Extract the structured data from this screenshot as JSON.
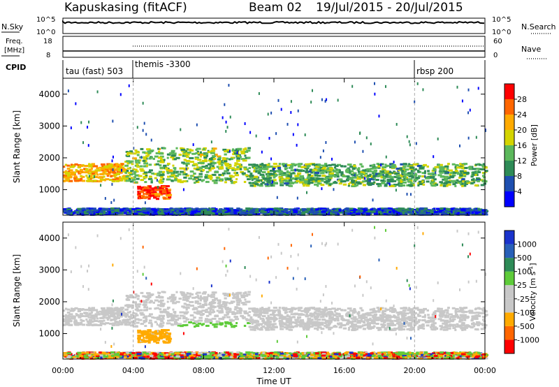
{
  "header": {
    "station": "Kapuskasing (fitACF)",
    "beam": "Beam 02",
    "date_range": "19/Jul/2015 - 20/Jul/2015"
  },
  "noise_panel": {
    "left_label": "N.Sky",
    "right_label": "N.Search",
    "left_ticks": [
      "10^5",
      "10^0"
    ],
    "right_ticks": [
      "10^5",
      "10^0"
    ]
  },
  "freq_panel": {
    "left_label_line1": "Freq.",
    "left_label_line2": "[MHz]",
    "right_label": "Nave",
    "left_ticks": [
      "18",
      "8"
    ],
    "right_ticks": [
      "60",
      "0"
    ]
  },
  "cpid_panel": {
    "label": "CPID",
    "segments": [
      {
        "name": "tau (fast) 503",
        "start_hour": 0
      },
      {
        "name": "themis -3300",
        "start_hour": 4
      },
      {
        "name": "rbsp 200",
        "start_hour": 20
      }
    ]
  },
  "colors": {
    "power_scale": [
      "#0000ff",
      "#1e4fb0",
      "#2e8b57",
      "#5cb85c",
      "#d4d400",
      "#ffaa00",
      "#ff6600",
      "#ff0000"
    ],
    "velocity_scale": [
      "#1a33cc",
      "#2860b8",
      "#2e8b57",
      "#5ecb3a",
      "#c8c8c8",
      "#c8c8c8",
      "#ffaa00",
      "#ff6600",
      "#ff0000"
    ]
  },
  "chart_data": [
    {
      "type": "heatmap",
      "title": "Power",
      "xlabel": "",
      "ylabel": "Slant Range [km]",
      "xlim": [
        0,
        24
      ],
      "ylim": [
        200,
        4500
      ],
      "yticks": [
        1000,
        2000,
        3000,
        4000
      ],
      "x_tick_hours": [
        0,
        4,
        8,
        12,
        16,
        20,
        24
      ],
      "x_tick_labels": [],
      "colorbar": {
        "label": "Power [dB]",
        "tick_labels": [
          "4",
          "8",
          "12",
          "16",
          "20",
          "24",
          "28"
        ],
        "range": [
          0,
          30
        ]
      },
      "regions": [
        {
          "t_start": 0,
          "t_end": 3.5,
          "r_low": 1250,
          "r_high": 1800,
          "value": 20
        },
        {
          "t_start": 3.5,
          "t_end": 10.5,
          "r_low": 1200,
          "r_high": 2300,
          "value": 14
        },
        {
          "t_start": 4.2,
          "t_end": 6.0,
          "r_low": 700,
          "r_high": 1100,
          "value": 26
        },
        {
          "t_start": 10.5,
          "t_end": 24,
          "r_low": 1100,
          "r_high": 1800,
          "value": 12
        },
        {
          "t_start": 0,
          "t_end": 24,
          "r_low": 200,
          "r_high": 400,
          "value": 6
        }
      ]
    },
    {
      "type": "heatmap",
      "title": "Velocity",
      "xlabel": "Time UT",
      "ylabel": "Slant Range [km]",
      "xlim": [
        0,
        24
      ],
      "ylim": [
        200,
        4500
      ],
      "yticks": [
        1000,
        2000,
        3000,
        4000
      ],
      "x_tick_hours": [
        0,
        4,
        8,
        12,
        16,
        20,
        24
      ],
      "x_tick_labels": [
        "00:00",
        "04:00",
        "08:00",
        "12:00",
        "16:00",
        "20:00",
        "00:00"
      ],
      "colorbar": {
        "label": "Velocity [m s^-1]",
        "tick_labels": [
          "1000",
          "500",
          "100",
          "25",
          "-25",
          "-100",
          "-500",
          "-1000"
        ]
      },
      "regions": [
        {
          "t_start": 0,
          "t_end": 24,
          "r_low": 1200,
          "r_high": 1700,
          "value": 0
        },
        {
          "t_start": 4.0,
          "t_end": 6.5,
          "r_low": 700,
          "r_high": 1100,
          "value": -150
        },
        {
          "t_start": 6.5,
          "t_end": 11.5,
          "r_low": 1100,
          "r_high": 1300,
          "value": 120
        }
      ]
    }
  ]
}
